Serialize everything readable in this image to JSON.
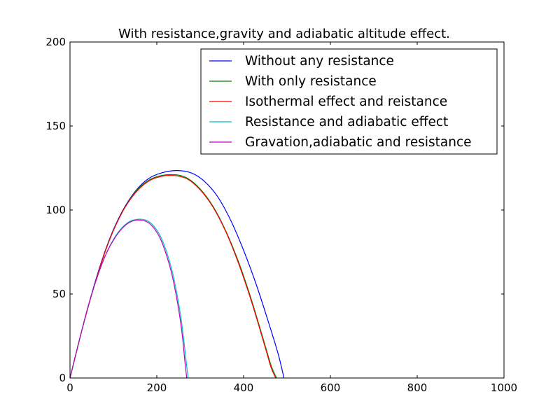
{
  "chart_data": {
    "type": "line",
    "title": "With resistance,gravity and adiabatic altitude effect.",
    "xlabel": "",
    "ylabel": "",
    "xlim": [
      0,
      1000
    ],
    "ylim": [
      0,
      200
    ],
    "xticks": [
      0,
      200,
      400,
      600,
      800,
      1000
    ],
    "yticks": [
      0,
      50,
      100,
      150,
      200
    ],
    "xtick_labels": [
      "0",
      "200",
      "400",
      "600",
      "800",
      "1000"
    ],
    "ytick_labels": [
      "0",
      "50",
      "100",
      "150",
      "200"
    ],
    "grid": false,
    "legend_position": "top-right",
    "series": [
      {
        "name": "Without any resistance",
        "color": "#0000ff",
        "points": [
          [
            0,
            0
          ],
          [
            30,
            31
          ],
          [
            60,
            59
          ],
          [
            90,
            82
          ],
          [
            120,
            99
          ],
          [
            150,
            111
          ],
          [
            180,
            118.5
          ],
          [
            210,
            122
          ],
          [
            245,
            123.5
          ],
          [
            280,
            122
          ],
          [
            310,
            117
          ],
          [
            340,
            108
          ],
          [
            370,
            94
          ],
          [
            400,
            76
          ],
          [
            430,
            55
          ],
          [
            460,
            31
          ],
          [
            480,
            14
          ],
          [
            493,
            0
          ]
        ]
      },
      {
        "name": "With only resistance",
        "color": "#008000",
        "points": [
          [
            0,
            0
          ],
          [
            30,
            31
          ],
          [
            60,
            58.5
          ],
          [
            90,
            81.5
          ],
          [
            120,
            98.5
          ],
          [
            150,
            110.5
          ],
          [
            180,
            117.5
          ],
          [
            210,
            120.5
          ],
          [
            242,
            121
          ],
          [
            270,
            119
          ],
          [
            300,
            112.5
          ],
          [
            330,
            102
          ],
          [
            360,
            87
          ],
          [
            390,
            68
          ],
          [
            420,
            45
          ],
          [
            450,
            19
          ],
          [
            464,
            7
          ],
          [
            476,
            0
          ]
        ]
      },
      {
        "name": "Isothermal effect and reistance",
        "color": "#ff0000",
        "points": [
          [
            0,
            0
          ],
          [
            30,
            31
          ],
          [
            60,
            58.5
          ],
          [
            90,
            81.5
          ],
          [
            120,
            98.5
          ],
          [
            150,
            110
          ],
          [
            180,
            117
          ],
          [
            210,
            120
          ],
          [
            240,
            120.5
          ],
          [
            270,
            118.5
          ],
          [
            300,
            112
          ],
          [
            330,
            101.5
          ],
          [
            360,
            86.5
          ],
          [
            390,
            67
          ],
          [
            420,
            44
          ],
          [
            450,
            18
          ],
          [
            463,
            6.5
          ],
          [
            474,
            0
          ]
        ]
      },
      {
        "name": "Resistance and adiabatic effect",
        "color": "#00bfbf",
        "points": [
          [
            0,
            0
          ],
          [
            20,
            21
          ],
          [
            40,
            41
          ],
          [
            60,
            58
          ],
          [
            80,
            72
          ],
          [
            100,
            82.5
          ],
          [
            120,
            89.5
          ],
          [
            140,
            93.5
          ],
          [
            165,
            94.5
          ],
          [
            185,
            92.5
          ],
          [
            205,
            86
          ],
          [
            220,
            77
          ],
          [
            235,
            64
          ],
          [
            245,
            52
          ],
          [
            255,
            37
          ],
          [
            262,
            23
          ],
          [
            268,
            9
          ],
          [
            272,
            0
          ]
        ]
      },
      {
        "name": "Gravation,adiabatic and resistance",
        "color": "#bf00bf",
        "points": [
          [
            0,
            0
          ],
          [
            20,
            21
          ],
          [
            40,
            41
          ],
          [
            60,
            58
          ],
          [
            80,
            72
          ],
          [
            100,
            82
          ],
          [
            120,
            89
          ],
          [
            140,
            93
          ],
          [
            163,
            94
          ],
          [
            183,
            92
          ],
          [
            203,
            85.5
          ],
          [
            218,
            76.5
          ],
          [
            233,
            63.5
          ],
          [
            243,
            51.5
          ],
          [
            253,
            36.5
          ],
          [
            260,
            22.5
          ],
          [
            265,
            9
          ],
          [
            269,
            0
          ]
        ]
      }
    ]
  }
}
